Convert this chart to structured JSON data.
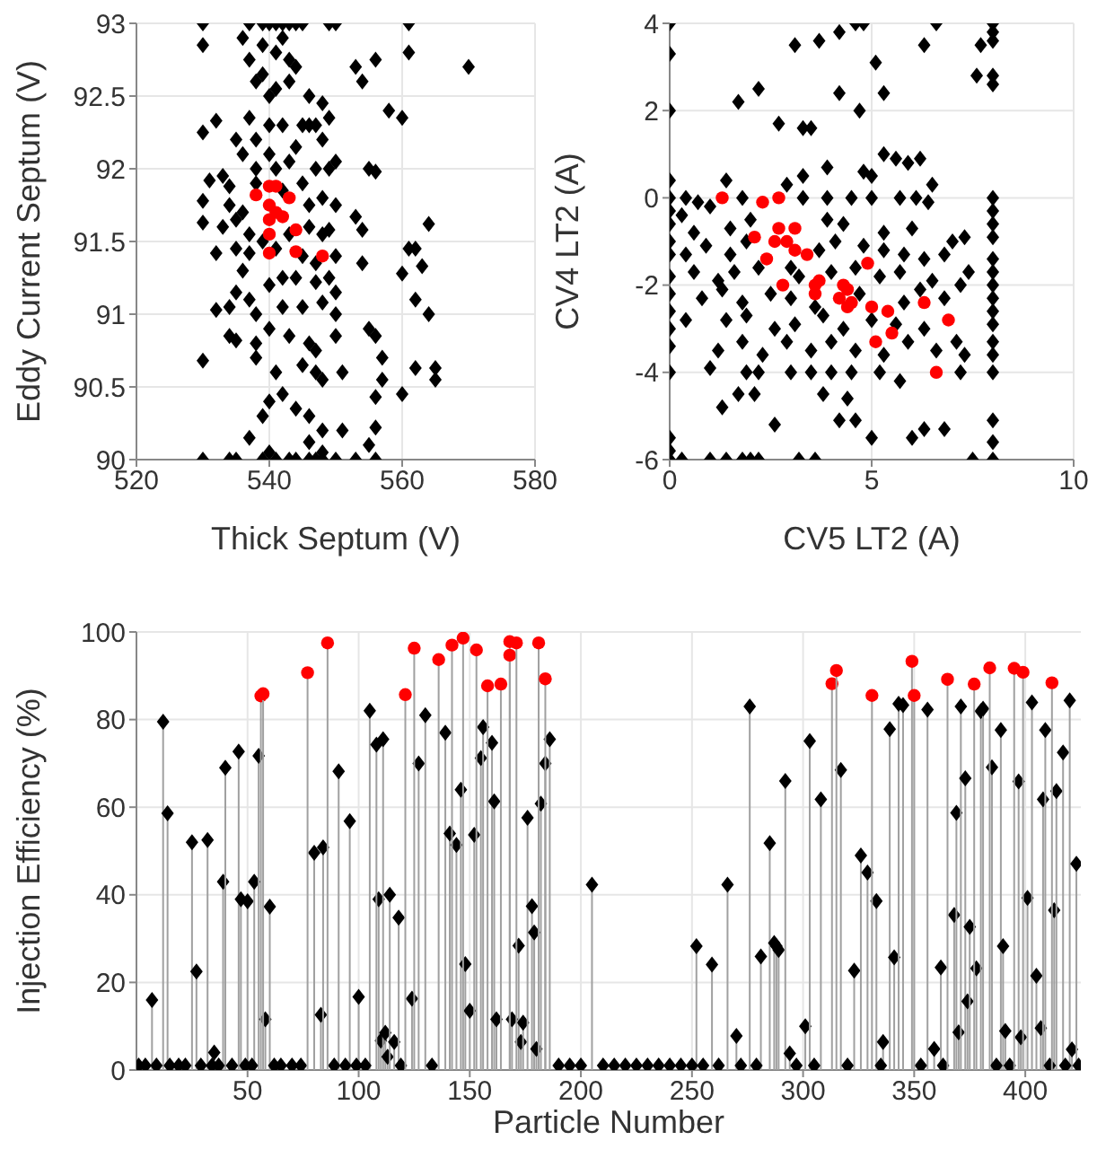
{
  "chart_data": [
    {
      "type": "scatter",
      "xlabel": "Thick Septum (V)",
      "ylabel": "Eddy Current Septum (V)",
      "xlim": [
        520,
        580
      ],
      "xticks": [
        520,
        540,
        560,
        580
      ],
      "ylim": [
        90,
        93
      ],
      "yticks": [
        90,
        90.5,
        91,
        91.5,
        92,
        92.5,
        93
      ],
      "grid": true,
      "series": [
        {
          "color": "#000000",
          "marker": "diamond",
          "x": [
            530,
            537,
            539,
            540,
            541,
            542,
            543,
            544,
            545,
            549,
            550,
            561,
            530,
            534,
            535,
            539,
            541,
            543,
            544,
            546,
            547,
            548,
            550,
            553,
            556,
            530,
            536,
            537,
            538,
            539,
            541,
            542,
            543,
            544,
            556,
            561,
            570,
            539,
            540,
            540,
            541,
            543,
            546,
            548,
            553,
            554,
            558,
            560,
            530,
            532,
            535,
            537,
            538,
            542,
            545,
            546,
            547,
            548,
            549,
            536,
            538,
            540,
            541,
            543,
            544,
            547,
            549,
            550,
            555,
            556,
            533,
            534,
            531,
            530,
            534,
            536,
            538,
            542,
            545,
            546,
            548,
            550,
            530,
            533,
            535,
            537,
            539,
            543,
            546,
            548,
            549,
            553,
            554,
            564,
            532,
            535,
            537,
            541,
            545,
            547,
            550,
            554,
            561,
            562,
            563,
            560,
            536,
            540,
            542,
            544,
            547,
            549,
            550,
            535,
            537,
            532,
            534,
            538,
            542,
            545,
            548,
            550,
            562,
            564,
            534,
            535,
            538,
            540,
            543,
            546,
            547,
            550,
            555,
            556,
            557,
            530,
            538,
            541,
            545,
            547,
            548,
            551,
            557,
            556,
            560,
            562,
            565,
            565,
            539,
            540,
            542,
            544,
            546,
            548,
            551,
            556,
            537,
            546,
            548,
            555,
            540
          ],
          "values": [
            93,
            93,
            93,
            93,
            93,
            93,
            93,
            93,
            93,
            93,
            93,
            93,
            90,
            90,
            90,
            90,
            90,
            90,
            90,
            90,
            90,
            90,
            90,
            90,
            90,
            92.85,
            92.9,
            92.75,
            92.6,
            92.85,
            92.8,
            92.9,
            92.75,
            92.7,
            92.75,
            92.8,
            92.7,
            92.65,
            92.5,
            92.3,
            92.55,
            92.6,
            92.5,
            92.45,
            92.7,
            92.6,
            92.4,
            92.35,
            92.25,
            92.33,
            92.2,
            92.35,
            92.2,
            92.3,
            92.3,
            92.3,
            92.3,
            92.2,
            92.35,
            92.1,
            92,
            92.1,
            92,
            92.05,
            92.15,
            92,
            92,
            92.05,
            92,
            91.98,
            91.95,
            91.88,
            91.92,
            91.78,
            91.75,
            91.7,
            91.9,
            91.85,
            91.9,
            91.75,
            91.8,
            91.75,
            91.63,
            91.6,
            91.65,
            91.55,
            91.5,
            91.55,
            91.6,
            91.55,
            91.58,
            91.67,
            91.58,
            91.62,
            91.42,
            91.45,
            91.42,
            91.45,
            91.4,
            91.35,
            91.4,
            91.35,
            91.45,
            91.45,
            91.33,
            91.28,
            91.3,
            91.2,
            91.25,
            91.25,
            91.22,
            91.25,
            91.15,
            91.15,
            91.1,
            91.03,
            91.05,
            91,
            91.05,
            91.05,
            91.08,
            91,
            91.1,
            91,
            90.85,
            90.82,
            90.8,
            90.9,
            90.85,
            90.8,
            90.75,
            90.85,
            90.9,
            90.85,
            90.7,
            90.68,
            90.7,
            90.6,
            90.65,
            90.6,
            90.55,
            90.6,
            90.55,
            90.43,
            90.45,
            90.63,
            90.63,
            90.55,
            90.3,
            90.4,
            90.45,
            90.35,
            90.3,
            90.2,
            90.2,
            90.22,
            90.15,
            90.12,
            90.05,
            90.1,
            90.05
          ]
        },
        {
          "color": "#ff0000",
          "marker": "circle",
          "x": [
            538,
            540,
            541,
            540,
            540,
            541,
            542,
            540,
            543,
            544,
            540,
            544,
            548
          ],
          "values": [
            91.82,
            91.88,
            91.88,
            91.75,
            91.65,
            91.7,
            91.67,
            91.55,
            91.8,
            91.58,
            91.42,
            91.43,
            91.4
          ]
        }
      ]
    },
    {
      "type": "scatter",
      "xlabel": "CV5 LT2 (A)",
      "ylabel": "CV4 LT2 (A)",
      "xlim": [
        0,
        10
      ],
      "xticks": [
        0,
        5,
        10
      ],
      "ylim": [
        -6,
        4
      ],
      "yticks": [
        -6,
        -4,
        -2,
        0,
        2,
        4
      ],
      "grid": true,
      "series": [
        {
          "color": "#000000",
          "marker": "diamond",
          "x": [
            0,
            0,
            0,
            0,
            0,
            0,
            0,
            0,
            0,
            0,
            0,
            0,
            0,
            0,
            0,
            0,
            0,
            0,
            8,
            8,
            8,
            8,
            8,
            8,
            8,
            8,
            8,
            8,
            8,
            8,
            8,
            8,
            8,
            8,
            8,
            8,
            8,
            8,
            8,
            3.1,
            3.7,
            4.2,
            4.6,
            4.8,
            6.6,
            6.3,
            5.1,
            7.7,
            7.6,
            1.7,
            2.2,
            2.7,
            3.3,
            3.5,
            4.2,
            4.7,
            5.3,
            3.9,
            4.8,
            5.3,
            5.6,
            5.9,
            6.2,
            6.5,
            5,
            3.3,
            1.4,
            2.9,
            0.4,
            0.7,
            1,
            1.8,
            3.3,
            3.9,
            4.5,
            5,
            5.7,
            6.1,
            6.4,
            0.3,
            0.6,
            1.5,
            2,
            3.9,
            4.3,
            5.3,
            6,
            7.3,
            7,
            0.4,
            0.9,
            1.5,
            1.9,
            3.7,
            4.1,
            4.8,
            5.3,
            5.8,
            6.3,
            6.8,
            0.6,
            1.2,
            1.6,
            2.2,
            3,
            3.2,
            4,
            4.6,
            5.2,
            5.7,
            6.5,
            7.4,
            0.8,
            1.3,
            1.8,
            2.5,
            3,
            3.6,
            4.7,
            5.8,
            6.2,
            6.8,
            7.2,
            0.4,
            1.4,
            1.9,
            2.6,
            3.1,
            3.8,
            4.3,
            5,
            5.6,
            6.3,
            7.1,
            7.3,
            1.2,
            1.8,
            2.3,
            2.9,
            3.5,
            4,
            4.6,
            5.3,
            5.9,
            6.6,
            1,
            1.9,
            2.2,
            3,
            3.5,
            4,
            4.5,
            5.2,
            5.7,
            7.2,
            1.7,
            2.1,
            3.8,
            4.4,
            1.3,
            4.2,
            4.6,
            2.6,
            5,
            6,
            6.3,
            6.8,
            0.3,
            1,
            1.4,
            1.8,
            2,
            2.2,
            3.2,
            3.6,
            7.5
          ],
          "values": [
            4,
            3.3,
            2,
            0.4,
            0,
            -0.3,
            -0.6,
            -1,
            -1.3,
            -1.8,
            -2.2,
            -2.6,
            -3,
            -3.4,
            -4,
            -5.5,
            -5.8,
            -6,
            4,
            3.8,
            3.6,
            2.8,
            2.6,
            0,
            -0.3,
            -0.6,
            -0.9,
            -1.4,
            -1.7,
            -2,
            -2.3,
            -2.6,
            -2.9,
            -3.3,
            -3.6,
            -4,
            -5.1,
            -5.6,
            -6,
            3.5,
            3.6,
            3.8,
            4,
            4,
            4,
            3.5,
            3.1,
            3.5,
            2.8,
            2.2,
            2.5,
            1.7,
            1.6,
            1.6,
            2.4,
            2,
            2.4,
            0.7,
            0.6,
            1,
            0.9,
            0.8,
            0.9,
            0.3,
            0.5,
            0.5,
            0.4,
            0.3,
            0,
            -0.1,
            -0.2,
            0,
            0,
            0,
            0,
            0,
            0,
            0,
            -0.1,
            -0.4,
            -0.8,
            -0.7,
            -0.5,
            -0.5,
            -0.6,
            -0.8,
            -0.7,
            -0.9,
            -1,
            -1.3,
            -1.1,
            -1.3,
            -1,
            -1.2,
            -1,
            -1.1,
            -1.2,
            -1.3,
            -1.4,
            -1.3,
            -1.7,
            -1.9,
            -1.7,
            -1.6,
            -1.6,
            -1.8,
            -1.7,
            -1.6,
            -1.8,
            -1.7,
            -1.9,
            -1.7,
            -2.3,
            -2.1,
            -2.4,
            -2.2,
            -2.3,
            -2.5,
            -2.2,
            -2.4,
            -2.1,
            -2.3,
            -2,
            -2.8,
            -2.8,
            -2.7,
            -3,
            -2.9,
            -2.7,
            -3,
            -2.8,
            -2.9,
            -3,
            -3.3,
            -3.6,
            -3.5,
            -3.3,
            -3.6,
            -3.3,
            -3.5,
            -3.3,
            -3.5,
            -3.6,
            -3.3,
            -3.5,
            -3.9,
            -4,
            -4,
            -4,
            -4,
            -4,
            -4,
            -4,
            -4.2,
            -4,
            -4.5,
            -4.5,
            -4.5,
            -4.6,
            -4.8,
            -5.1,
            -5.1,
            -5.2,
            -5.5,
            -5.5,
            -5.3,
            -5.3,
            -6,
            -6,
            -6,
            -6,
            -6,
            -6,
            -6,
            -6,
            -6
          ]
        },
        {
          "color": "#ff0000",
          "marker": "circle",
          "x": [
            1.3,
            2.3,
            2.7,
            2.1,
            2.7,
            3.1,
            2.6,
            2.9,
            3.1,
            3.4,
            2.4,
            2.8,
            3.7,
            3.6,
            3.6,
            4.3,
            4.2,
            4.4,
            4.4,
            4.5,
            4.9,
            5,
            5.4,
            5.5,
            5.1,
            6.3,
            6.9,
            6.6
          ],
          "values": [
            0,
            -0.1,
            0,
            -0.9,
            -0.7,
            -0.7,
            -1,
            -1,
            -1.2,
            -1.3,
            -1.4,
            -2,
            -1.9,
            -2,
            -2.2,
            -2,
            -2.3,
            -2.1,
            -2.5,
            -2.4,
            -1.5,
            -2.5,
            -2.6,
            -3.1,
            -3.3,
            -2.4,
            -2.8,
            -4
          ]
        }
      ]
    },
    {
      "type": "lollipop",
      "xlabel": "Particle Number",
      "ylabel": "Injection Efficiency (%)",
      "xlim": [
        0,
        425
      ],
      "xticks": [
        50,
        100,
        150,
        200,
        250,
        300,
        350,
        400
      ],
      "ylim": [
        0,
        100
      ],
      "yticks": [
        0,
        20,
        40,
        60,
        80,
        100
      ],
      "grid": true,
      "series": [
        {
          "color": "#000000",
          "marker": "diamond",
          "x": [
            7,
            12,
            14,
            25,
            27,
            32,
            35,
            39,
            40,
            46,
            47,
            50,
            53,
            55,
            58,
            60,
            80,
            83,
            84,
            91,
            96,
            100,
            105,
            109,
            110,
            108,
            111,
            112,
            113,
            114,
            116,
            118,
            124,
            127,
            130,
            139,
            141,
            144,
            146,
            148,
            150,
            152,
            155,
            156,
            160,
            161,
            162,
            169,
            172,
            173,
            174,
            176,
            178,
            179,
            180,
            182,
            184,
            186,
            205,
            252,
            259,
            266,
            270,
            276,
            281,
            285,
            287,
            288,
            289,
            292,
            294,
            301,
            303,
            308,
            317,
            323,
            326,
            329,
            333,
            336,
            339,
            341,
            343,
            345,
            356,
            359,
            362,
            368,
            369,
            370,
            371,
            373,
            374,
            375,
            378,
            380,
            381,
            385,
            389,
            390,
            391,
            397,
            398,
            401,
            403,
            405,
            407,
            408,
            409,
            413,
            414,
            417,
            420,
            421,
            423,
            1,
            4,
            9,
            15,
            19,
            22,
            29,
            34,
            37,
            43,
            49,
            52,
            62,
            65,
            70,
            74,
            89,
            94,
            99,
            103,
            119,
            133,
            190,
            195,
            200,
            210,
            215,
            220,
            225,
            230,
            235,
            240,
            245,
            250,
            255,
            262,
            272,
            279,
            297,
            305,
            320,
            335,
            353,
            363,
            387,
            393,
            411,
            418,
            424
          ],
          "values": [
            16,
            79.5,
            58.6,
            52,
            22.5,
            52.5,
            4,
            43,
            69,
            72.7,
            39,
            38.5,
            43,
            71.7,
            11.6,
            37.3,
            49.6,
            12.6,
            50.8,
            68.2,
            56.8,
            16.7,
            82,
            39,
            6.7,
            74.3,
            75.5,
            8.5,
            3,
            40,
            6.4,
            34.8,
            16.3,
            70,
            81,
            77,
            54,
            51.4,
            64,
            24.2,
            13.5,
            53.7,
            71.2,
            78.3,
            74.7,
            61.3,
            11.6,
            11.6,
            28.4,
            6.4,
            10.8,
            57.6,
            37.4,
            31.4,
            4.8,
            60.8,
            70,
            75.5,
            42.3,
            28.3,
            24.1,
            42.3,
            7.8,
            83,
            25.9,
            51.8,
            29,
            28.3,
            27.4,
            66,
            3.8,
            10,
            75.1,
            61.8,
            68.5,
            22.7,
            49,
            45.1,
            38.6,
            6.4,
            77.8,
            25.7,
            83.6,
            83.3,
            82.3,
            4.8,
            23.4,
            35.4,
            58.7,
            8.6,
            83,
            66.6,
            15.7,
            32.7,
            23.2,
            81.9,
            82.5,
            69.1,
            77.6,
            28.3,
            8.9,
            65.9,
            7.5,
            39.3,
            83.9,
            21.5,
            9.6,
            61.8,
            77.6,
            36.5,
            63.7,
            72.5,
            84.4,
            4.7,
            47.1,
            1,
            1,
            1,
            1,
            1,
            1,
            1,
            1,
            1,
            1,
            1,
            1,
            1,
            1,
            1,
            1,
            1,
            1,
            1,
            1,
            1,
            1,
            1,
            1,
            1,
            1,
            1,
            1,
            1,
            1,
            1,
            1,
            1,
            1,
            1,
            1,
            1,
            1,
            1,
            1,
            1,
            1,
            1,
            1,
            1,
            1,
            1,
            1,
            1
          ]
        },
        {
          "color": "#ff0000",
          "marker": "circle",
          "x": [
            56,
            57,
            77,
            86,
            121,
            125,
            136,
            142,
            147,
            153,
            158,
            164,
            168,
            168,
            171,
            181,
            184,
            313,
            315,
            331,
            349,
            350,
            365,
            377,
            384,
            395,
            399,
            412
          ],
          "values": [
            85.4,
            85.9,
            90.7,
            97.5,
            85.7,
            96.3,
            93.7,
            97,
            98.6,
            95.9,
            87.7,
            88.1,
            97.8,
            94.7,
            97.5,
            97.5,
            89.3,
            88.2,
            91.2,
            85.5,
            93.3,
            85.5,
            89.2,
            88.1,
            91.8,
            91.7,
            90.8,
            88.4
          ]
        }
      ]
    }
  ]
}
